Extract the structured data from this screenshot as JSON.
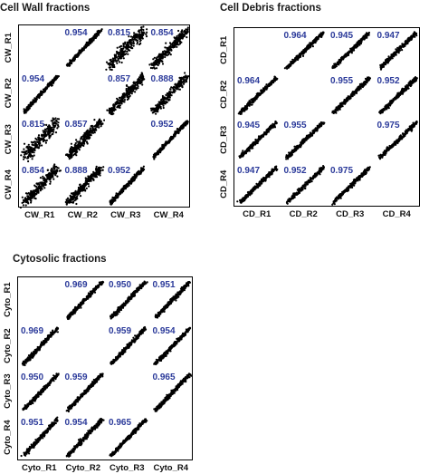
{
  "chart_data": [
    {
      "type": "scatter",
      "title": "Cell Wall fractions",
      "labels": [
        "CW_R1",
        "CW_R2",
        "CW_R3",
        "CW_R4"
      ],
      "correlations": [
        [
          null,
          0.954,
          0.815,
          0.854
        ],
        [
          0.954,
          null,
          0.857,
          0.888
        ],
        [
          0.815,
          0.857,
          null,
          0.952
        ],
        [
          0.854,
          0.888,
          0.952,
          null
        ]
      ],
      "correlation_labels": [
        [
          "",
          "0.954",
          "0.815",
          "0.854"
        ],
        [
          "0.954",
          "",
          "0.857",
          "0.888"
        ],
        [
          "0.815",
          "0.857",
          "",
          "0.952"
        ],
        [
          "0.854",
          "0.888",
          "0.952",
          ""
        ]
      ]
    },
    {
      "type": "scatter",
      "title": "Cell Debris fractions",
      "labels": [
        "CD_R1",
        "CD_R2",
        "CD_R3",
        "CD_R4"
      ],
      "correlations": [
        [
          null,
          0.964,
          0.945,
          0.947
        ],
        [
          0.964,
          null,
          0.955,
          0.952
        ],
        [
          0.945,
          0.955,
          null,
          0.975
        ],
        [
          0.947,
          0.952,
          0.975,
          null
        ]
      ],
      "correlation_labels": [
        [
          "",
          "0.964",
          "0.945",
          "0.947"
        ],
        [
          "0.964",
          "",
          "0.955",
          "0.952"
        ],
        [
          "0.945",
          "0.955",
          "",
          "0.975"
        ],
        [
          "0.947",
          "0.952",
          "0.975",
          ""
        ]
      ]
    },
    {
      "type": "scatter",
      "title": "Cytosolic fractions",
      "labels": [
        "Cyto_R1",
        "Cyto_R2",
        "Cyto_R3",
        "Cyto_R4"
      ],
      "correlations": [
        [
          null,
          0.969,
          0.95,
          0.951
        ],
        [
          0.969,
          null,
          0.959,
          0.954
        ],
        [
          0.95,
          0.959,
          null,
          0.965
        ],
        [
          0.951,
          0.954,
          0.965,
          null
        ]
      ],
      "correlation_labels": [
        [
          "",
          "0.969",
          "0.950",
          "0.951"
        ],
        [
          "0.969",
          "",
          "0.959",
          "0.954"
        ],
        [
          "0.950",
          "0.959",
          "",
          "0.965"
        ],
        [
          "0.951",
          "0.954",
          "0.965",
          ""
        ]
      ]
    }
  ],
  "colors": {
    "points": "#000000",
    "correlation_text": "#2b3a9a"
  }
}
